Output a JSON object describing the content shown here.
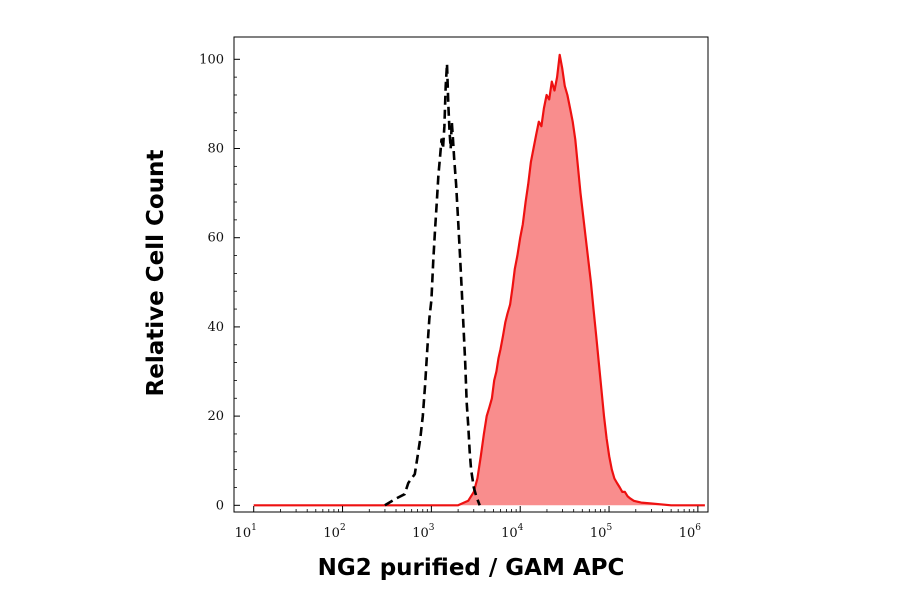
{
  "chart_data": {
    "type": "area",
    "xlabel": "NG2 purified / GAM APC",
    "ylabel": "Relative Cell Count",
    "x_scale": "log",
    "xlim": [
      6,
      1300000
    ],
    "ylim": [
      -1.5,
      105
    ],
    "y_ticks": [
      {
        "value": 0,
        "label": "0"
      },
      {
        "value": 20,
        "label": "20"
      },
      {
        "value": 40,
        "label": "40"
      },
      {
        "value": 60,
        "label": "60"
      },
      {
        "value": 80,
        "label": "80"
      },
      {
        "value": 100,
        "label": "100"
      }
    ],
    "x_ticks": [
      {
        "value": 10,
        "base": "10",
        "exp": "1"
      },
      {
        "value": 100,
        "base": "10",
        "exp": "2"
      },
      {
        "value": 1000,
        "base": "10",
        "exp": "3"
      },
      {
        "value": 10000,
        "base": "10",
        "exp": "4"
      },
      {
        "value": 100000,
        "base": "10",
        "exp": "5"
      },
      {
        "value": 1000000,
        "base": "10",
        "exp": "6"
      }
    ],
    "grid": false,
    "legend": "none",
    "series": [
      {
        "style": "dashed-line",
        "color": "#000000",
        "points": [
          [
            300,
            0
          ],
          [
            400,
            1.5
          ],
          [
            500,
            2.5
          ],
          [
            550,
            5
          ],
          [
            650,
            7
          ],
          [
            700,
            11
          ],
          [
            750,
            15
          ],
          [
            800,
            20
          ],
          [
            850,
            27
          ],
          [
            900,
            35
          ],
          [
            950,
            42
          ],
          [
            1000,
            46
          ],
          [
            1050,
            55
          ],
          [
            1100,
            62
          ],
          [
            1150,
            68
          ],
          [
            1200,
            74
          ],
          [
            1250,
            78
          ],
          [
            1300,
            82
          ],
          [
            1350,
            80
          ],
          [
            1400,
            85
          ],
          [
            1450,
            94
          ],
          [
            1500,
            99
          ],
          [
            1550,
            90
          ],
          [
            1600,
            84
          ],
          [
            1650,
            80
          ],
          [
            1700,
            86
          ],
          [
            1750,
            82
          ],
          [
            1800,
            78
          ],
          [
            1900,
            72
          ],
          [
            2000,
            64
          ],
          [
            2100,
            56
          ],
          [
            2200,
            48
          ],
          [
            2300,
            40
          ],
          [
            2400,
            32
          ],
          [
            2500,
            23
          ],
          [
            2600,
            18
          ],
          [
            2700,
            12
          ],
          [
            2800,
            8
          ],
          [
            3000,
            4
          ],
          [
            3200,
            2
          ],
          [
            3500,
            0
          ]
        ]
      },
      {
        "style": "filled-area",
        "color": "#ee1111",
        "fill": "#f98d8d",
        "points": [
          [
            10,
            0
          ],
          [
            2000,
            0
          ],
          [
            2600,
            1
          ],
          [
            3000,
            3
          ],
          [
            3300,
            6
          ],
          [
            3600,
            11
          ],
          [
            3900,
            16
          ],
          [
            4200,
            20
          ],
          [
            4500,
            22
          ],
          [
            4800,
            24
          ],
          [
            5100,
            28
          ],
          [
            5400,
            30
          ],
          [
            5700,
            33
          ],
          [
            6000,
            35
          ],
          [
            6400,
            38
          ],
          [
            6800,
            41
          ],
          [
            7200,
            43
          ],
          [
            7700,
            45
          ],
          [
            8200,
            49
          ],
          [
            8700,
            53
          ],
          [
            9300,
            56
          ],
          [
            10000,
            60
          ],
          [
            10700,
            63
          ],
          [
            11500,
            68
          ],
          [
            12300,
            72
          ],
          [
            13200,
            77
          ],
          [
            14100,
            80
          ],
          [
            15100,
            83
          ],
          [
            16200,
            86
          ],
          [
            17300,
            85
          ],
          [
            18500,
            89
          ],
          [
            19800,
            92
          ],
          [
            21200,
            91
          ],
          [
            22700,
            95
          ],
          [
            24300,
            93
          ],
          [
            26000,
            96
          ],
          [
            27800,
            101
          ],
          [
            29700,
            98
          ],
          [
            31800,
            94
          ],
          [
            34000,
            92
          ],
          [
            36400,
            89
          ],
          [
            39000,
            86
          ],
          [
            41700,
            82
          ],
          [
            44600,
            76
          ],
          [
            47700,
            70
          ],
          [
            51000,
            65
          ],
          [
            54600,
            60
          ],
          [
            58400,
            55
          ],
          [
            62500,
            50
          ],
          [
            66900,
            44
          ],
          [
            71600,
            38
          ],
          [
            76600,
            32
          ],
          [
            82000,
            26
          ],
          [
            87700,
            20
          ],
          [
            93800,
            15
          ],
          [
            100400,
            11
          ],
          [
            107400,
            8
          ],
          [
            115000,
            6
          ],
          [
            123000,
            5
          ],
          [
            132000,
            4
          ],
          [
            141000,
            3
          ],
          [
            151000,
            3
          ],
          [
            162000,
            2
          ],
          [
            174000,
            1.5
          ],
          [
            190000,
            1
          ],
          [
            230000,
            0.6
          ],
          [
            300000,
            0.4
          ],
          [
            500000,
            0
          ],
          [
            1200000,
            0
          ]
        ]
      }
    ]
  }
}
